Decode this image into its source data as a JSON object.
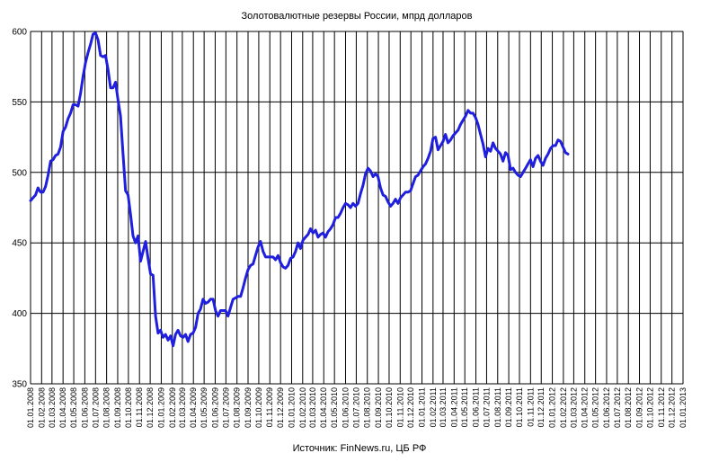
{
  "chart_data": {
    "type": "line",
    "title": "Золотовалютные  резервы России, мпрд долларов",
    "source": "Источник:  FinNews.ru,  ЦБ РФ",
    "xlabel": "",
    "ylabel": "",
    "ylim": [
      350,
      600
    ],
    "y_ticks": [
      350,
      400,
      450,
      500,
      550,
      600
    ],
    "grid": true,
    "legend": "none",
    "colors": {
      "line": "#1f1fdd",
      "grid": "#000000",
      "border": "#808080"
    },
    "x_ticks": [
      "01.01.2008",
      "01.02.2008",
      "01.03.2008",
      "01.04.2008",
      "01.05.2008",
      "01.06.2008",
      "01.07.2008",
      "01.08.2008",
      "01.09.2008",
      "01.10.2008",
      "01.11.2008",
      "01.12.2008",
      "01.01.2009",
      "01.02.2009",
      "01.03.2009",
      "01.04.2009",
      "01.05.2009",
      "01.06.2009",
      "01.07.2009",
      "01.08.2009",
      "01.09.2009",
      "01.10.2009",
      "01.11.2009",
      "01.12.2009",
      "01.01.2010",
      "01.02.2010",
      "01.03.2010",
      "01.04.2010",
      "01.05.2010",
      "01.06.2010",
      "01.07.2010",
      "01.08.2010",
      "01.09.2010",
      "01.10.2010",
      "01.11.2010",
      "01.12.2010",
      "01.01.2011",
      "01.02.2011",
      "01.03.2011",
      "01.04.2011",
      "01.05.2011",
      "01.06.2011",
      "01.07.2011",
      "01.08.2011",
      "01.09.2011",
      "01.10.2011",
      "01.11.2011",
      "01.12.2011",
      "01.01.2012",
      "01.02.2012",
      "01.03.2012",
      "01.04.2012",
      "01.05.2012",
      "01.06.2012",
      "01.07.2012",
      "01.08.2012",
      "01.09.2012",
      "01.10.2012",
      "01.11.2012",
      "01.12.2012",
      "01.01.2013"
    ],
    "series": [
      {
        "values": [
          [
            "01.01.2008",
            480
          ],
          [
            "08.01.2008",
            482
          ],
          [
            "15.01.2008",
            484
          ],
          [
            "22.01.2008",
            489
          ],
          [
            "29.01.2008",
            486
          ],
          [
            "05.02.2008",
            486
          ],
          [
            "12.02.2008",
            490
          ],
          [
            "19.02.2008",
            498
          ],
          [
            "26.02.2008",
            508
          ],
          [
            "04.03.2008",
            509
          ],
          [
            "11.03.2008",
            512
          ],
          [
            "18.03.2008",
            513
          ],
          [
            "25.03.2008",
            518
          ],
          [
            "01.04.2008",
            529
          ],
          [
            "08.04.2008",
            532
          ],
          [
            "15.04.2008",
            538
          ],
          [
            "22.04.2008",
            542
          ],
          [
            "29.04.2008",
            548
          ],
          [
            "06.05.2008",
            548
          ],
          [
            "13.05.2008",
            547
          ],
          [
            "20.05.2008",
            556
          ],
          [
            "27.05.2008",
            568
          ],
          [
            "03.06.2008",
            578
          ],
          [
            "10.06.2008",
            585
          ],
          [
            "17.06.2008",
            591
          ],
          [
            "24.06.2008",
            598
          ],
          [
            "01.07.2008",
            599
          ],
          [
            "08.07.2008",
            594
          ],
          [
            "15.07.2008",
            583
          ],
          [
            "22.07.2008",
            582
          ],
          [
            "29.07.2008",
            583
          ],
          [
            "05.08.2008",
            573
          ],
          [
            "12.08.2008",
            560
          ],
          [
            "19.08.2008",
            560
          ],
          [
            "26.08.2008",
            564
          ],
          [
            "02.09.2008",
            551
          ],
          [
            "09.09.2008",
            540
          ],
          [
            "16.09.2008",
            513
          ],
          [
            "23.09.2008",
            487
          ],
          [
            "30.09.2008",
            484
          ],
          [
            "07.10.2008",
            470
          ],
          [
            "14.10.2008",
            455
          ],
          [
            "21.10.2008",
            450
          ],
          [
            "28.10.2008",
            455
          ],
          [
            "04.11.2008",
            437
          ],
          [
            "11.11.2008",
            444
          ],
          [
            "18.11.2008",
            451
          ],
          [
            "25.11.2008",
            439
          ],
          [
            "02.12.2008",
            428
          ],
          [
            "09.12.2008",
            427
          ],
          [
            "16.12.2008",
            398
          ],
          [
            "23.12.2008",
            386
          ],
          [
            "30.12.2008",
            388
          ],
          [
            "06.01.2009",
            383
          ],
          [
            "13.01.2009",
            385
          ],
          [
            "20.01.2009",
            381
          ],
          [
            "27.01.2009",
            384
          ],
          [
            "03.02.2009",
            377
          ],
          [
            "10.02.2009",
            385
          ],
          [
            "17.02.2009",
            388
          ],
          [
            "24.02.2009",
            384
          ],
          [
            "03.03.2009",
            383
          ],
          [
            "10.03.2009",
            385
          ],
          [
            "17.03.2009",
            380
          ],
          [
            "24.03.2009",
            385
          ],
          [
            "31.03.2009",
            386
          ],
          [
            "07.04.2009",
            390
          ],
          [
            "14.04.2009",
            400
          ],
          [
            "21.04.2009",
            403
          ],
          [
            "28.04.2009",
            410
          ],
          [
            "05.05.2009",
            407
          ],
          [
            "12.05.2009",
            408
          ],
          [
            "19.05.2009",
            410
          ],
          [
            "26.05.2009",
            410
          ],
          [
            "02.06.2009",
            402
          ],
          [
            "09.06.2009",
            398
          ],
          [
            "16.06.2009",
            402
          ],
          [
            "23.06.2009",
            402
          ],
          [
            "30.06.2009",
            402
          ],
          [
            "07.07.2009",
            398
          ],
          [
            "14.07.2009",
            404
          ],
          [
            "21.07.2009",
            410
          ],
          [
            "28.07.2009",
            411
          ],
          [
            "04.08.2009",
            412
          ],
          [
            "11.08.2009",
            412
          ],
          [
            "18.08.2009",
            418
          ],
          [
            "25.08.2009",
            425
          ],
          [
            "01.09.2009",
            431
          ],
          [
            "08.09.2009",
            434
          ],
          [
            "15.09.2009",
            435
          ],
          [
            "22.09.2009",
            441
          ],
          [
            "29.09.2009",
            447
          ],
          [
            "06.10.2009",
            451
          ],
          [
            "13.10.2009",
            444
          ],
          [
            "20.10.2009",
            440
          ],
          [
            "27.10.2009",
            440
          ],
          [
            "03.11.2009",
            440
          ],
          [
            "10.11.2009",
            440
          ],
          [
            "17.11.2009",
            438
          ],
          [
            "24.11.2009",
            441
          ],
          [
            "01.12.2009",
            436
          ],
          [
            "08.12.2009",
            433
          ],
          [
            "15.12.2009",
            432
          ],
          [
            "22.12.2009",
            434
          ],
          [
            "29.12.2009",
            439
          ],
          [
            "05.01.2010",
            440
          ],
          [
            "12.01.2010",
            444
          ],
          [
            "19.01.2010",
            450
          ],
          [
            "26.01.2010",
            446
          ],
          [
            "02.02.2010",
            452
          ],
          [
            "09.02.2010",
            454
          ],
          [
            "16.02.2010",
            456
          ],
          [
            "23.02.2010",
            460
          ],
          [
            "02.03.2010",
            457
          ],
          [
            "09.03.2010",
            459
          ],
          [
            "16.03.2010",
            454
          ],
          [
            "23.03.2010",
            456
          ],
          [
            "30.03.2010",
            457
          ],
          [
            "06.04.2010",
            454
          ],
          [
            "13.04.2010",
            458
          ],
          [
            "20.04.2010",
            460
          ],
          [
            "27.04.2010",
            463
          ],
          [
            "04.05.2010",
            468
          ],
          [
            "11.05.2010",
            468
          ],
          [
            "18.05.2010",
            471
          ],
          [
            "25.05.2010",
            475
          ],
          [
            "01.06.2010",
            478
          ],
          [
            "08.06.2010",
            477
          ],
          [
            "15.06.2010",
            475
          ],
          [
            "22.06.2010",
            478
          ],
          [
            "29.06.2010",
            476
          ],
          [
            "06.07.2010",
            478
          ],
          [
            "13.07.2010",
            485
          ],
          [
            "20.07.2010",
            491
          ],
          [
            "27.07.2010",
            499
          ],
          [
            "03.08.2010",
            503
          ],
          [
            "10.08.2010",
            501
          ],
          [
            "17.08.2010",
            497
          ],
          [
            "24.08.2010",
            499
          ],
          [
            "31.08.2010",
            497
          ],
          [
            "07.09.2010",
            489
          ],
          [
            "14.09.2010",
            484
          ],
          [
            "21.09.2010",
            483
          ],
          [
            "28.09.2010",
            479
          ],
          [
            "05.10.2010",
            476
          ],
          [
            "12.10.2010",
            478
          ],
          [
            "19.10.2010",
            481
          ],
          [
            "26.10.2010",
            478
          ],
          [
            "02.11.2010",
            482
          ],
          [
            "09.11.2010",
            484
          ],
          [
            "16.11.2010",
            486
          ],
          [
            "23.11.2010",
            486
          ],
          [
            "30.11.2010",
            487
          ],
          [
            "07.12.2010",
            492
          ],
          [
            "14.12.2010",
            497
          ],
          [
            "21.12.2010",
            498
          ],
          [
            "28.12.2010",
            501
          ],
          [
            "04.01.2011",
            504
          ],
          [
            "11.01.2011",
            506
          ],
          [
            "18.01.2011",
            510
          ],
          [
            "25.01.2011",
            515
          ],
          [
            "01.02.2011",
            524
          ],
          [
            "08.02.2011",
            525
          ],
          [
            "15.02.2011",
            516
          ],
          [
            "22.02.2011",
            519
          ],
          [
            "01.03.2011",
            522
          ],
          [
            "08.03.2011",
            527
          ],
          [
            "15.03.2011",
            521
          ],
          [
            "22.03.2011",
            523
          ],
          [
            "29.03.2011",
            526
          ],
          [
            "05.04.2011",
            528
          ],
          [
            "12.04.2011",
            530
          ],
          [
            "19.04.2011",
            534
          ],
          [
            "26.04.2011",
            537
          ],
          [
            "03.05.2011",
            540
          ],
          [
            "10.05.2011",
            544
          ],
          [
            "17.05.2011",
            542
          ],
          [
            "24.05.2011",
            542
          ],
          [
            "31.05.2011",
            539
          ],
          [
            "07.06.2011",
            534
          ],
          [
            "14.06.2011",
            527
          ],
          [
            "21.06.2011",
            520
          ],
          [
            "28.06.2011",
            511
          ],
          [
            "05.07.2011",
            517
          ],
          [
            "12.07.2011",
            515
          ],
          [
            "19.07.2011",
            521
          ],
          [
            "26.07.2011",
            517
          ],
          [
            "02.08.2011",
            515
          ],
          [
            "09.08.2011",
            513
          ],
          [
            "16.08.2011",
            508
          ],
          [
            "23.08.2011",
            514
          ],
          [
            "30.08.2011",
            512
          ],
          [
            "06.09.2011",
            502
          ],
          [
            "13.09.2011",
            503
          ],
          [
            "20.09.2011",
            500
          ],
          [
            "27.09.2011",
            498
          ],
          [
            "04.10.2011",
            497
          ],
          [
            "11.10.2011",
            500
          ],
          [
            "18.10.2011",
            503
          ],
          [
            "25.10.2011",
            506
          ],
          [
            "01.11.2011",
            509
          ],
          [
            "08.11.2011",
            504
          ],
          [
            "15.11.2011",
            510
          ],
          [
            "22.11.2011",
            512
          ],
          [
            "29.11.2011",
            508
          ],
          [
            "06.12.2011",
            505
          ],
          [
            "13.12.2011",
            510
          ],
          [
            "20.12.2011",
            513
          ],
          [
            "27.12.2011",
            517
          ],
          [
            "03.01.2012",
            519
          ],
          [
            "10.01.2012",
            519
          ],
          [
            "17.01.2012",
            523
          ],
          [
            "24.01.2012",
            522
          ],
          [
            "31.01.2012",
            518
          ],
          [
            "07.02.2012",
            514
          ],
          [
            "14.02.2012",
            513
          ]
        ]
      }
    ]
  }
}
